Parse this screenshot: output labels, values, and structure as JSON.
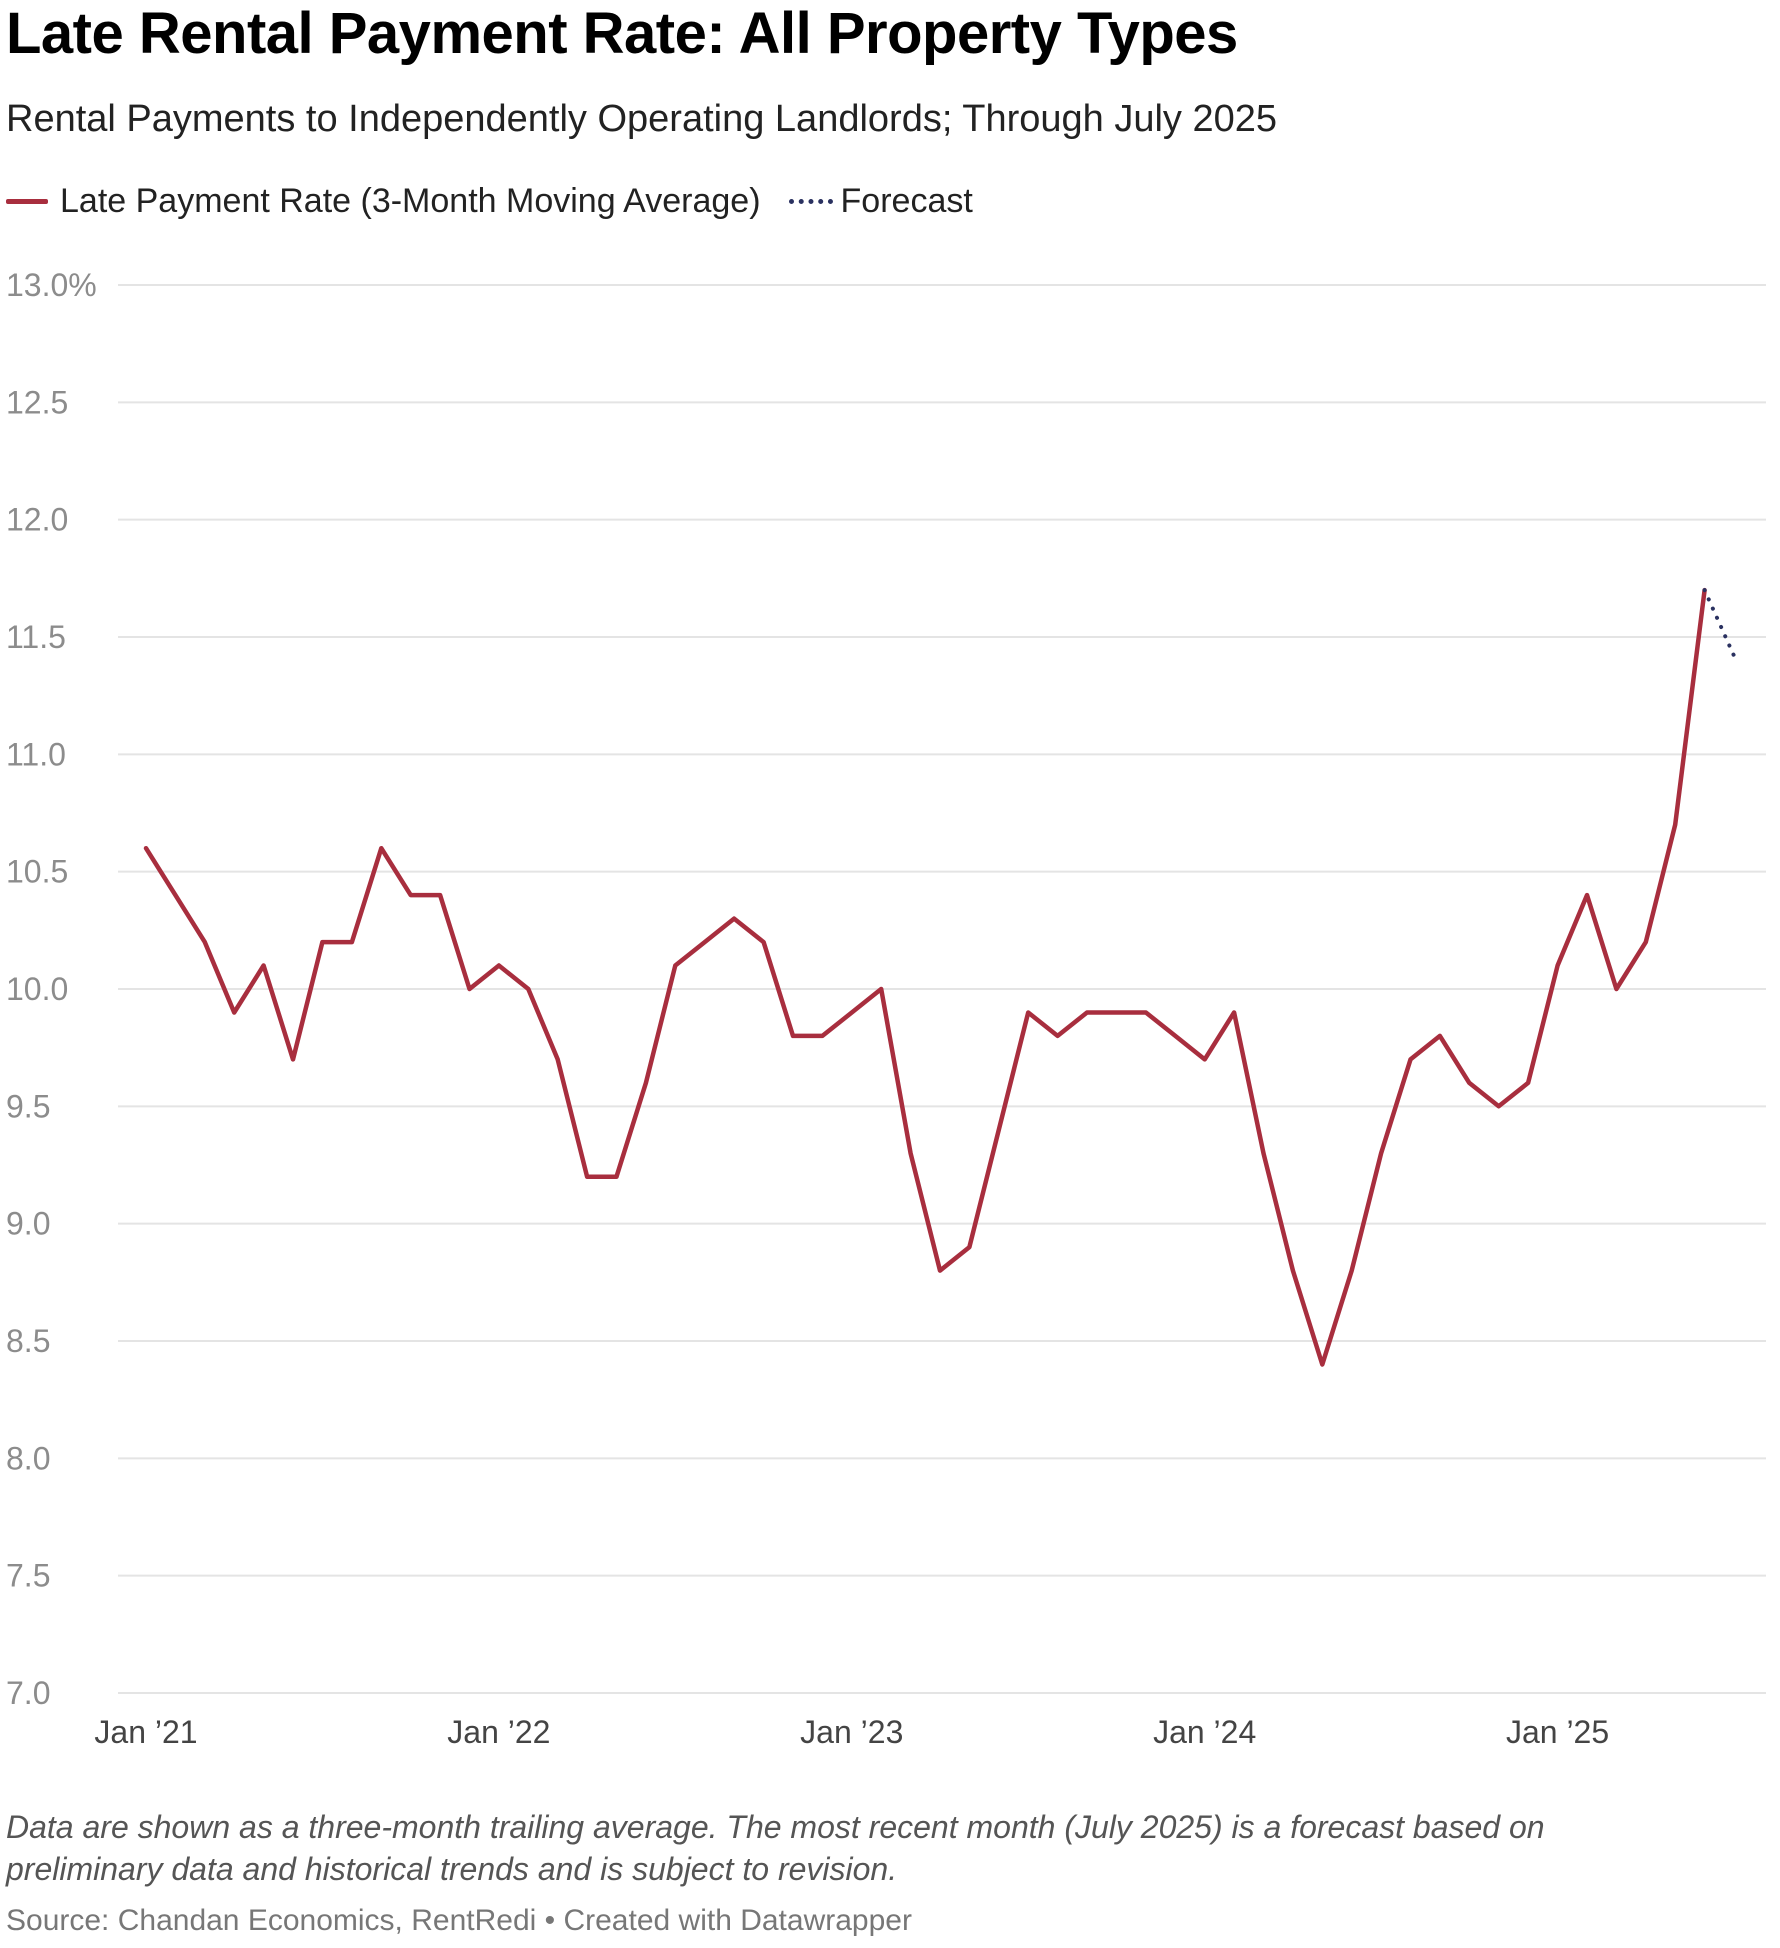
{
  "title": "Late Rental Payment Rate: All Property Types",
  "subtitle": "Rental Payments to Independently Operating Landlords; Through July 2025",
  "legend": {
    "actual": "Late Payment Rate (3-Month Moving Average)",
    "forecast": "Forecast"
  },
  "notes": "Data are shown as a three-month trailing average. The most recent month (July 2025) is a forecast based on preliminary data and historical trends and is subject to revision.",
  "source": "Source: Chandan Economics, RentRedi • Created with Datawrapper",
  "colors": {
    "actual": "#a82e3e",
    "forecast": "#2a3160",
    "grid": "#e4e4e4"
  },
  "chart_data": {
    "type": "line",
    "title": "Late Rental Payment Rate: All Property Types",
    "xlabel": "",
    "ylabel": "",
    "ylim": [
      7.0,
      13.0
    ],
    "y_ticks": [
      {
        "value": 13.0,
        "label": "13.0%"
      },
      {
        "value": 12.5,
        "label": "12.5"
      },
      {
        "value": 12.0,
        "label": "12.0"
      },
      {
        "value": 11.5,
        "label": "11.5"
      },
      {
        "value": 11.0,
        "label": "11.0"
      },
      {
        "value": 10.5,
        "label": "10.5"
      },
      {
        "value": 10.0,
        "label": "10.0"
      },
      {
        "value": 9.5,
        "label": "9.5"
      },
      {
        "value": 9.0,
        "label": "9.0"
      },
      {
        "value": 8.5,
        "label": "8.5"
      },
      {
        "value": 8.0,
        "label": "8.0"
      },
      {
        "value": 7.5,
        "label": "7.5"
      },
      {
        "value": 7.0,
        "label": "7.0"
      }
    ],
    "x_ticks": [
      {
        "index": 0,
        "label": "Jan ’21"
      },
      {
        "index": 12,
        "label": "Jan ’22"
      },
      {
        "index": 24,
        "label": "Jan ’23"
      },
      {
        "index": 36,
        "label": "Jan ’24"
      },
      {
        "index": 48,
        "label": "Jan ’25"
      }
    ],
    "x_count": 55,
    "series": [
      {
        "name": "Late Payment Rate (3-Month Moving Average)",
        "start_index": 0,
        "values": [
          10.6,
          10.4,
          10.2,
          9.9,
          10.1,
          9.7,
          10.2,
          10.2,
          10.6,
          10.4,
          10.4,
          10.0,
          10.1,
          10.0,
          9.7,
          9.2,
          9.2,
          9.6,
          10.1,
          10.2,
          10.3,
          10.2,
          9.8,
          9.8,
          9.9,
          10.0,
          9.3,
          8.8,
          8.9,
          9.4,
          9.9,
          9.8,
          9.9,
          9.9,
          9.9,
          9.8,
          9.7,
          9.9,
          9.3,
          8.8,
          8.4,
          8.8,
          9.3,
          9.7,
          9.8,
          9.6,
          9.5,
          9.6,
          10.1,
          10.4,
          10.0,
          10.2,
          10.7,
          11.7
        ]
      },
      {
        "name": "Forecast",
        "start_index": 53,
        "values": [
          11.7,
          11.42
        ]
      }
    ]
  }
}
